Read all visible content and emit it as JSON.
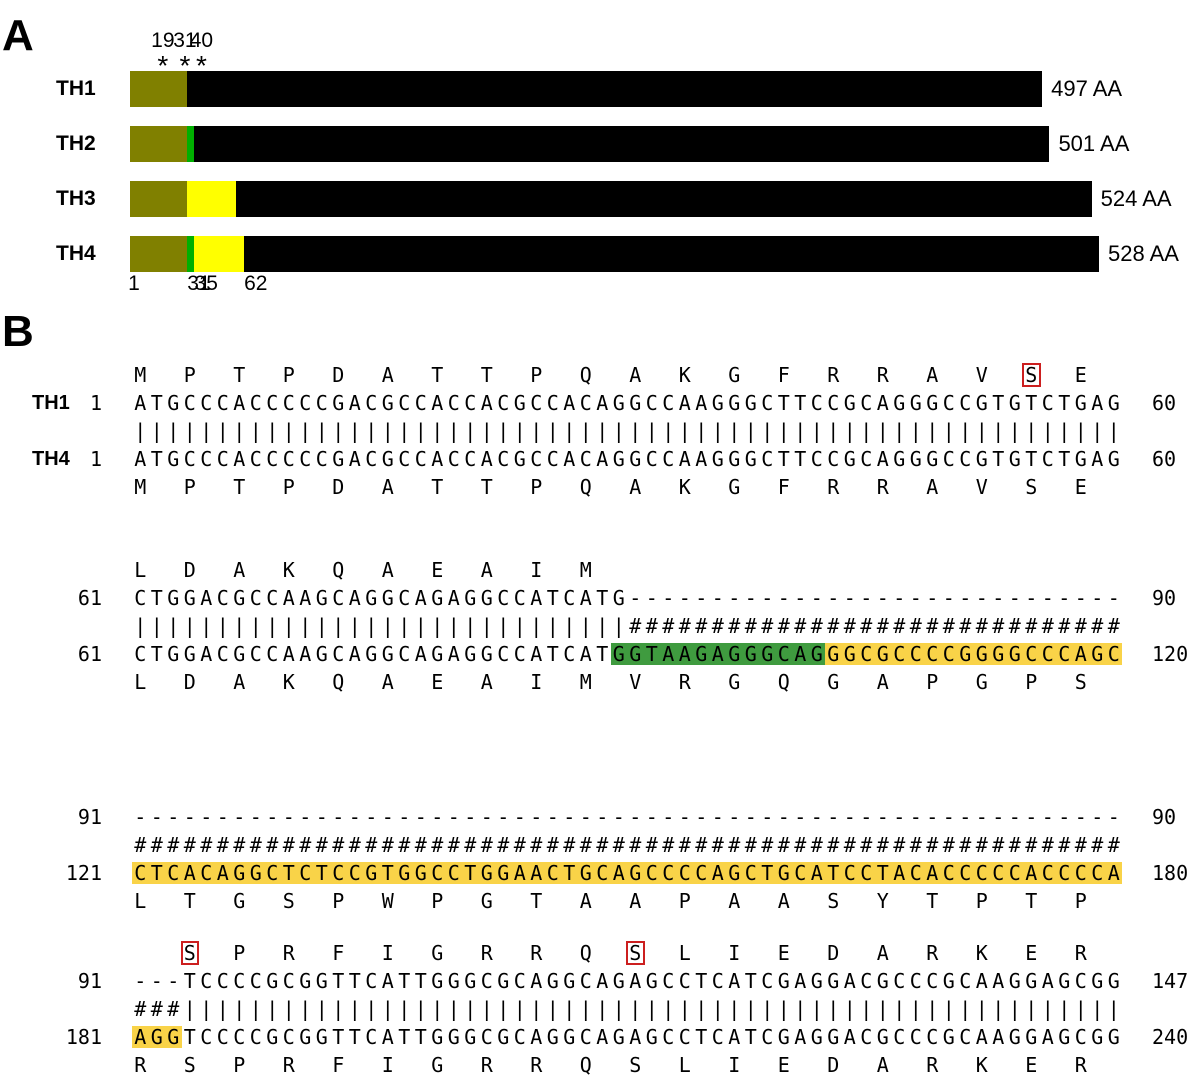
{
  "panelA": {
    "letter": "A",
    "aa_scale_max": 528,
    "asterisks": [
      {
        "label": "19",
        "aa": 19
      },
      {
        "label": "31",
        "aa": 31
      },
      {
        "label": "40",
        "aa": 40
      }
    ],
    "isoforms": [
      {
        "name": "TH1",
        "length_label": "497 AA",
        "length": 497,
        "segments": [
          {
            "from": 0,
            "to": 31,
            "color": "#808000"
          },
          {
            "from": 31,
            "to": 497,
            "color": "#000000"
          }
        ]
      },
      {
        "name": "TH2",
        "length_label": "501 AA",
        "length": 501,
        "segments": [
          {
            "from": 0,
            "to": 31,
            "color": "#808000"
          },
          {
            "from": 31,
            "to": 35,
            "color": "#00b000"
          },
          {
            "from": 35,
            "to": 501,
            "color": "#000000"
          }
        ]
      },
      {
        "name": "TH3",
        "length_label": "524 AA",
        "length": 524,
        "segments": [
          {
            "from": 0,
            "to": 31,
            "color": "#808000"
          },
          {
            "from": 31,
            "to": 58,
            "color": "#ffff00"
          },
          {
            "from": 58,
            "to": 524,
            "color": "#000000"
          }
        ]
      },
      {
        "name": "TH4",
        "length_label": "528 AA",
        "length": 528,
        "segments": [
          {
            "from": 0,
            "to": 31,
            "color": "#808000"
          },
          {
            "from": 31,
            "to": 35,
            "color": "#00b000"
          },
          {
            "from": 35,
            "to": 62,
            "color": "#ffff00"
          },
          {
            "from": 62,
            "to": 528,
            "color": "#000000"
          }
        ]
      }
    ],
    "bottom_positions": [
      {
        "label": "1",
        "aa": 0
      },
      {
        "label": "31",
        "aa": 31
      },
      {
        "label": "35",
        "aa": 35
      },
      {
        "label": "62",
        "aa": 62
      }
    ]
  },
  "panelB": {
    "letter": "B",
    "blocks": [
      {
        "th1_label": "TH1",
        "th4_label": "TH4",
        "top_aa": "M P T P D A T T P Q A K G F R R A V S E",
        "top_aa_boxed": [
          18
        ],
        "th1_start": "1",
        "th1_seq": "ATGCCCACCCCCGACGCCACCACGCCACAGGCCAAGGGCTTCCGCAGGGCCGTGTCTGAG",
        "th1_end": "60",
        "match": "||||||||||||||||||||||||||||||||||||||||||||||||||||||||||||",
        "th4_start": "1",
        "th4_seq": "ATGCCCACCCCCGACGCCACCACGCCACAGGCCAAGGGCTTCCGCAGGGCCGTGTCTGAG",
        "th4_end": "60",
        "bottom_aa": "M P T P D A T T P Q A K G F R R A V S E",
        "bottom_aa_boxed": [],
        "green": [
          0,
          0
        ],
        "yellow": [
          0,
          0
        ]
      },
      {
        "th1_label": "",
        "th4_label": "",
        "top_aa": "L D A K Q A E A I M",
        "top_aa_boxed": [],
        "th1_start": "61",
        "th1_seq": "CTGGACGCCAAGCAGGCAGAGGCCATCATG------------------------------",
        "th1_end": "90",
        "match": "||||||||||||||||||||||||||||||##############################",
        "th4_start": "61",
        "th4_seq": "CTGGACGCCAAGCAGGCAGAGGCCATCATGGTAAGAGGGCAGGGCGCCCCGGGGCCCAGC",
        "th4_end": "120",
        "bottom_aa": "L D A K Q A E A I M V R G Q G A P G P S",
        "bottom_aa_boxed": [],
        "green": [
          29,
          42
        ],
        "yellow": [
          42,
          60
        ]
      },
      {
        "th1_label": "",
        "th4_label": "",
        "top_aa": "",
        "top_aa_boxed": [],
        "th1_start": "91",
        "th1_seq": "------------------------------------------------------------",
        "th1_end": "90",
        "match": "############################################################",
        "th4_start": "121",
        "th4_seq": "CTCACAGGCTCTCCGTGGCCTGGAACTGCAGCCCCAGCTGCATCCTACACCCCCACCCCA",
        "th4_end": "180",
        "bottom_aa": "L T G S P W P G T A A P A A S Y T P T P",
        "bottom_aa_boxed": [],
        "green": [
          0,
          0
        ],
        "yellow": [
          0,
          60
        ]
      },
      {
        "th1_label": "",
        "th4_label": "",
        "top_aa": "S P R F I G R R Q S L I E D A R K E R",
        "top_aa_boxed": [
          0,
          9
        ],
        "top_aa_offset": 1,
        "th1_start": "91",
        "th1_seq": "---TCCCCGCGGTTCATTGGGCGCAGGCAGAGCCTCATCGAGGACGCCCGCAAGGAGCGG",
        "th1_end": "147",
        "match": "###|||||||||||||||||||||||||||||||||||||||||||||||||||||||||",
        "th4_start": "181",
        "th4_seq": "AGGTCCCCGCGGTTCATTGGGCGCAGGCAGAGCCTCATCGAGGACGCCCGCAAGGAGCGG",
        "th4_end": "240",
        "bottom_aa": "R S P R F I G R R Q S L I E D A R K E R",
        "bottom_aa_boxed": [],
        "green": [
          0,
          0
        ],
        "yellow": [
          0,
          3
        ]
      }
    ]
  }
}
